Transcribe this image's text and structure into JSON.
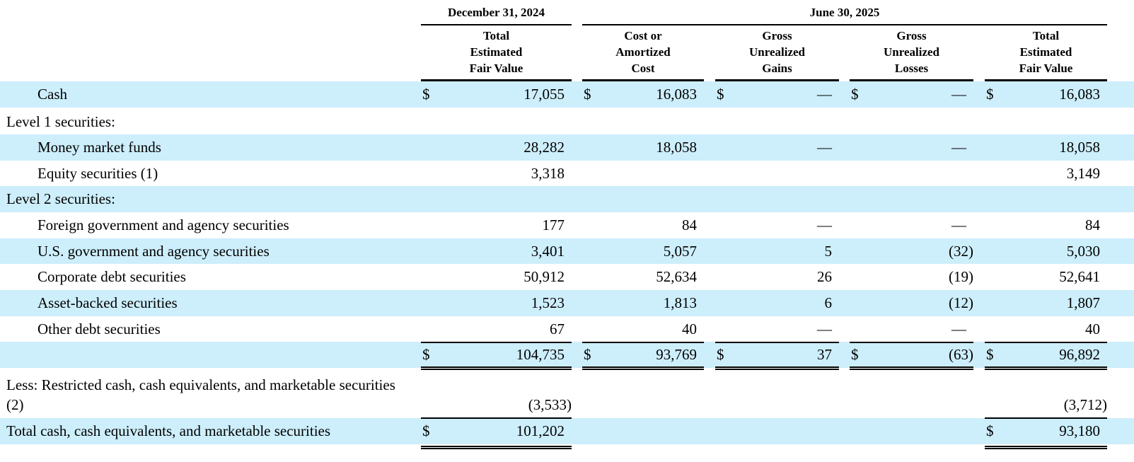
{
  "headers": {
    "period_a": "December 31, 2024",
    "period_b": "June 30, 2025",
    "cols": [
      "Total\nEstimated\nFair Value",
      "Cost or\nAmortized\nCost",
      "Gross\nUnrealized\nGains",
      "Gross\nUnrealized\nLosses",
      "Total\nEstimated\nFair Value"
    ]
  },
  "rows": [
    {
      "label": "Cash",
      "indent": true,
      "band": true,
      "dollar": [
        true,
        true,
        true,
        true,
        true
      ],
      "values": [
        "17,055",
        "16,083",
        "—",
        "—",
        "16,083"
      ]
    },
    {
      "label": "Level 1 securities:",
      "indent": false,
      "band": false,
      "dollar": [
        false,
        false,
        false,
        false,
        false
      ],
      "values": [
        "",
        "",
        "",
        "",
        ""
      ]
    },
    {
      "label": "Money market funds",
      "indent": true,
      "band": true,
      "dollar": [
        false,
        false,
        false,
        false,
        false
      ],
      "values": [
        "28,282",
        "18,058",
        "—",
        "—",
        "18,058"
      ]
    },
    {
      "label": "Equity securities (1)",
      "indent": true,
      "band": false,
      "dollar": [
        false,
        false,
        false,
        false,
        false
      ],
      "values": [
        "3,318",
        "",
        "",
        "",
        "3,149"
      ]
    },
    {
      "label": "Level 2 securities:",
      "indent": false,
      "band": true,
      "dollar": [
        false,
        false,
        false,
        false,
        false
      ],
      "values": [
        "",
        "",
        "",
        "",
        ""
      ]
    },
    {
      "label": "Foreign government and agency securities",
      "indent": true,
      "band": false,
      "dollar": [
        false,
        false,
        false,
        false,
        false
      ],
      "values": [
        "177",
        "84",
        "—",
        "—",
        "84"
      ]
    },
    {
      "label": "U.S. government and agency securities",
      "indent": true,
      "band": true,
      "dollar": [
        false,
        false,
        false,
        false,
        false
      ],
      "values": [
        "3,401",
        "5,057",
        "5",
        "(32)",
        "5,030"
      ]
    },
    {
      "label": "Corporate debt securities",
      "indent": true,
      "band": false,
      "dollar": [
        false,
        false,
        false,
        false,
        false
      ],
      "values": [
        "50,912",
        "52,634",
        "26",
        "(19)",
        "52,641"
      ]
    },
    {
      "label": "Asset-backed securities",
      "indent": true,
      "band": true,
      "dollar": [
        false,
        false,
        false,
        false,
        false
      ],
      "values": [
        "1,523",
        "1,813",
        "6",
        "(12)",
        "1,807"
      ]
    },
    {
      "label": "Other debt securities",
      "indent": true,
      "band": false,
      "dollar": [
        false,
        false,
        false,
        false,
        false
      ],
      "values": [
        "67",
        "40",
        "—",
        "—",
        "40"
      ]
    },
    {
      "label": "",
      "indent": false,
      "band": true,
      "dollar": [
        true,
        true,
        true,
        true,
        true
      ],
      "values": [
        "104,735",
        "93,769",
        "37",
        "(63)",
        "96,892"
      ]
    },
    {
      "label": "Less: Restricted cash, cash equivalents, and marketable securities (2)",
      "indent": false,
      "band": false,
      "dollar": [
        false,
        false,
        false,
        false,
        false
      ],
      "values": [
        "(3,533)",
        "",
        "",
        "",
        "(3,712)"
      ]
    },
    {
      "label": "Total cash, cash equivalents, and marketable securities",
      "indent": false,
      "band": true,
      "dollar": [
        true,
        false,
        false,
        false,
        true
      ],
      "values": [
        "101,202",
        "",
        "",
        "",
        "93,180"
      ]
    }
  ],
  "dollar_sign": "$"
}
